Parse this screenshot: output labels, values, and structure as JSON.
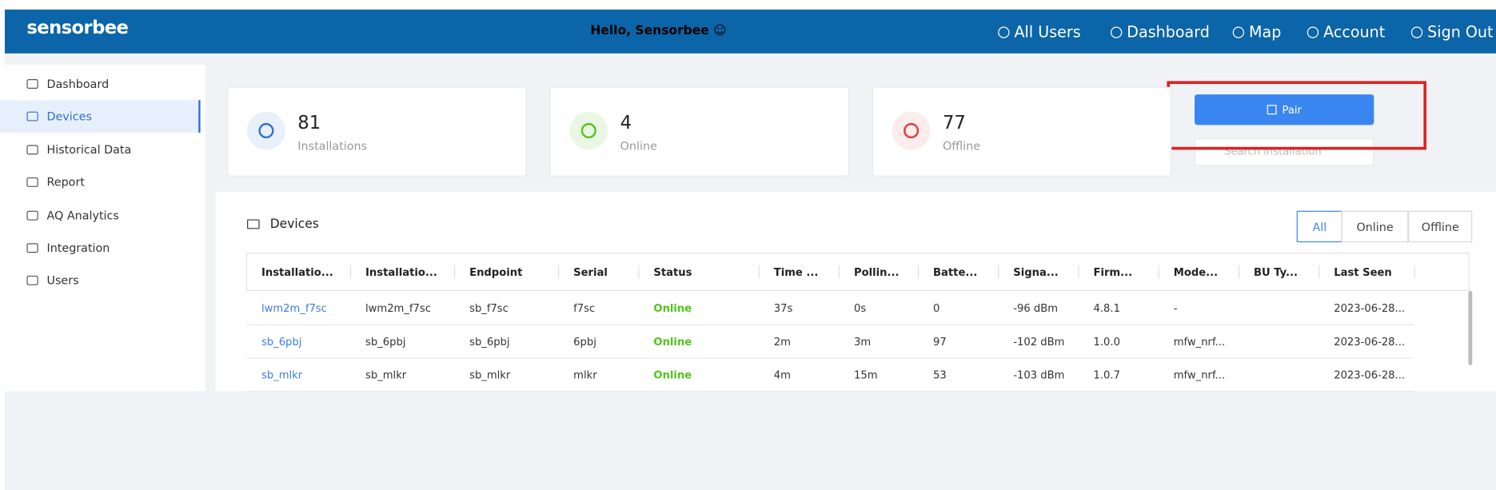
{
  "header": {
    "logo": "sensorbee",
    "greeting": "Hello, Sensorbee",
    "nav": [
      "All Users",
      "Dashboard",
      "Map",
      "Account",
      "Sign Out"
    ]
  },
  "sidebar": [
    "Dashboard",
    "Devices",
    "Historical Data",
    "Report",
    "AQ Analytics",
    "Integration",
    "Users"
  ],
  "stats": [
    {
      "value": "81",
      "label": "Installations"
    },
    {
      "value": "4",
      "label": "Online"
    },
    {
      "value": "77",
      "label": "Offline"
    }
  ],
  "pair_button": "Pair",
  "search_placeholder": "Search installation",
  "devices": {
    "title": "Devices",
    "filters": [
      "All",
      "Online",
      "Offline"
    ],
    "columns": [
      "Installatio...",
      "Installatio...",
      "Endpoint",
      "Serial",
      "Status",
      "Time ...",
      "Pollin...",
      "Batte...",
      "Signa...",
      "Firm...",
      "Mode...",
      "BU Ty...",
      "Last Seen"
    ],
    "rows": [
      [
        "lwm2m_f7sc",
        "lwm2m_f7sc",
        "sb_f7sc",
        "f7sc",
        "Online",
        "37s",
        "0s",
        "0",
        "-96 dBm",
        "4.8.1",
        "-",
        "",
        "2023-06-28..."
      ],
      [
        "sb_6pbj",
        "sb_6pbj",
        "sb_6pbj",
        "6pbj",
        "Online",
        "2m",
        "3m",
        "97",
        "-102 dBm",
        "1.0.0",
        "mfw_nrf...",
        "",
        "2023-06-28..."
      ],
      [
        "sb_mlkr",
        "sb_mlkr",
        "sb_mlkr",
        "mlkr",
        "Online",
        "4m",
        "15m",
        "53",
        "-103 dBm",
        "1.0.7",
        "mfw_nrf...",
        "",
        "2023-06-28..."
      ]
    ]
  }
}
